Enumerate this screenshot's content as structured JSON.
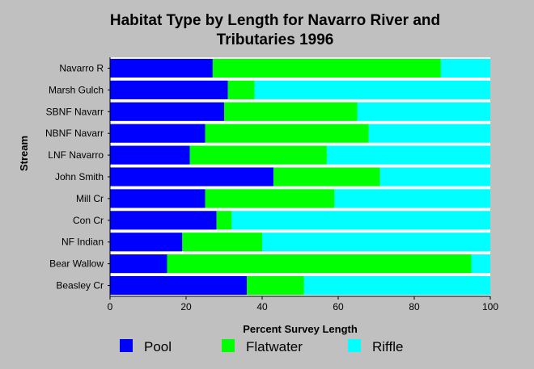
{
  "chart_data": {
    "type": "bar",
    "orientation": "horizontal",
    "stacked": true,
    "title": "Habitat Type by Length for Navarro River and Tributaries 1996",
    "title_lines": [
      "Habitat Type by Length for Navarro River and",
      "Tributaries 1996"
    ],
    "xlabel": "Percent Survey Length",
    "ylabel": "Stream",
    "xlim": [
      0,
      100
    ],
    "xticks": [
      0,
      20,
      40,
      60,
      80,
      100
    ],
    "grid": false,
    "legend_position": "bottom",
    "categories": [
      "Navarro R",
      "Marsh Gulch",
      "SBNF Navarr",
      "NBNF Navarr",
      "LNF Navarro",
      "John Smith",
      "Mill Cr",
      "Con Cr",
      "NF Indian",
      "Bear Wallow",
      "Beasley Cr"
    ],
    "series": [
      {
        "name": "Pool",
        "color": "#0000ff",
        "values": [
          27,
          31,
          30,
          25,
          21,
          43,
          25,
          28,
          19,
          15,
          36
        ]
      },
      {
        "name": "Flatwater",
        "color": "#00ff00",
        "values": [
          60,
          7,
          35,
          43,
          36,
          28,
          34,
          4,
          21,
          80,
          15
        ]
      },
      {
        "name": "Riffle",
        "color": "#00ffff",
        "values": [
          13,
          62,
          35,
          32,
          43,
          29,
          41,
          68,
          60,
          5,
          49
        ]
      }
    ]
  }
}
